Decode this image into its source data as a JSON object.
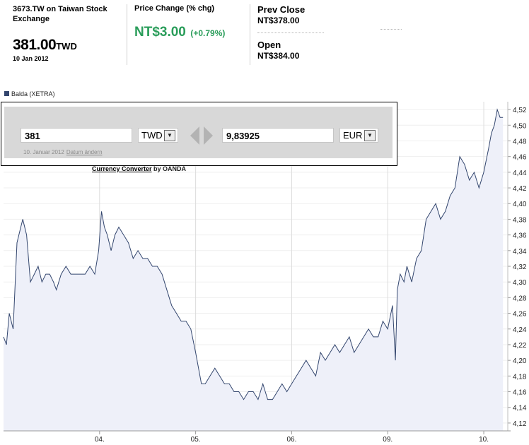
{
  "quote": {
    "exchange": "3673.TW on Taiwan Stock Exchange",
    "price": "381.00",
    "currency": "TWD",
    "date": "10 Jan 2012",
    "change_label": "Price Change (% chg)",
    "change_value": "NT$3.00",
    "change_pct": "(+0.79%)",
    "prev_close_label": "Prev Close",
    "prev_close_value": "NT$378.00",
    "open_label": "Open",
    "open_value": "NT$384.00",
    "change_color": "#2a9d5a"
  },
  "converter": {
    "amount": "381",
    "from_currency": "TWD",
    "result": "9,83925",
    "to_currency": "EUR",
    "date_text": "10. Januar 2012",
    "change_date_link": "Datum ändern",
    "credit_link": "Currency Converter",
    "credit_by": "by OANDA",
    "dropdown_icon": "chevron-down-icon",
    "swap_icon": "swap-arrows-icon"
  },
  "chart_data": {
    "type": "area",
    "legend": "Balda (XETRA)",
    "line_color": "#33466e",
    "fill_color": "#eef0f9",
    "y_ticks": [
      "4,52",
      "4,50",
      "4,48",
      "4,46",
      "4,44",
      "4,42",
      "4,40",
      "4,38",
      "4,36",
      "4,34",
      "4,32",
      "4,30",
      "4,28",
      "4,26",
      "4,24",
      "4,22",
      "4,20",
      "4,18",
      "4,16",
      "4,14",
      "4,12"
    ],
    "ylim": [
      4.11,
      4.53
    ],
    "x_ticks": [
      "04.",
      "05.",
      "06.",
      "09.",
      "10."
    ],
    "x_tick_positions": [
      1.0,
      2.0,
      3.0,
      4.0,
      5.0
    ],
    "xlim": [
      0.0,
      5.25
    ],
    "x": [
      0.0,
      0.03,
      0.06,
      0.1,
      0.14,
      0.18,
      0.2,
      0.24,
      0.28,
      0.32,
      0.36,
      0.4,
      0.44,
      0.48,
      0.52,
      0.55,
      0.6,
      0.65,
      0.7,
      0.75,
      0.8,
      0.85,
      0.9,
      0.95,
      0.99,
      1.02,
      1.05,
      1.08,
      1.12,
      1.16,
      1.2,
      1.25,
      1.3,
      1.35,
      1.4,
      1.45,
      1.5,
      1.55,
      1.6,
      1.65,
      1.7,
      1.75,
      1.8,
      1.85,
      1.9,
      1.95,
      2.0,
      2.03,
      2.06,
      2.1,
      2.15,
      2.2,
      2.25,
      2.3,
      2.35,
      2.4,
      2.45,
      2.5,
      2.55,
      2.6,
      2.65,
      2.7,
      2.75,
      2.8,
      2.85,
      2.9,
      2.95,
      3.0,
      3.05,
      3.1,
      3.15,
      3.2,
      3.25,
      3.3,
      3.35,
      3.4,
      3.45,
      3.5,
      3.55,
      3.6,
      3.65,
      3.7,
      3.75,
      3.8,
      3.85,
      3.9,
      3.95,
      4.0,
      4.05,
      4.08,
      4.1,
      4.13,
      4.17,
      4.2,
      4.25,
      4.3,
      4.35,
      4.4,
      4.45,
      4.5,
      4.55,
      4.6,
      4.65,
      4.7,
      4.75,
      4.8,
      4.85,
      4.9,
      4.95,
      5.0,
      5.05,
      5.08,
      5.11,
      5.14,
      5.17,
      5.2
    ],
    "y": [
      4.23,
      4.22,
      4.26,
      4.24,
      4.35,
      4.37,
      4.38,
      4.36,
      4.3,
      4.31,
      4.32,
      4.3,
      4.31,
      4.31,
      4.3,
      4.29,
      4.31,
      4.32,
      4.31,
      4.31,
      4.31,
      4.31,
      4.32,
      4.31,
      4.34,
      4.39,
      4.37,
      4.36,
      4.34,
      4.36,
      4.37,
      4.36,
      4.35,
      4.33,
      4.34,
      4.33,
      4.33,
      4.32,
      4.32,
      4.31,
      4.29,
      4.27,
      4.26,
      4.25,
      4.25,
      4.24,
      4.21,
      4.19,
      4.17,
      4.17,
      4.18,
      4.19,
      4.18,
      4.17,
      4.17,
      4.16,
      4.16,
      4.15,
      4.16,
      4.16,
      4.15,
      4.17,
      4.15,
      4.15,
      4.16,
      4.17,
      4.16,
      4.17,
      4.18,
      4.19,
      4.2,
      4.19,
      4.18,
      4.21,
      4.2,
      4.21,
      4.22,
      4.21,
      4.22,
      4.23,
      4.21,
      4.22,
      4.23,
      4.24,
      4.23,
      4.23,
      4.25,
      4.24,
      4.27,
      4.2,
      4.29,
      4.31,
      4.3,
      4.32,
      4.3,
      4.33,
      4.34,
      4.38,
      4.39,
      4.4,
      4.38,
      4.39,
      4.41,
      4.42,
      4.46,
      4.45,
      4.43,
      4.44,
      4.42,
      4.44,
      4.47,
      4.49,
      4.5,
      4.52,
      4.51,
      4.51
    ]
  }
}
